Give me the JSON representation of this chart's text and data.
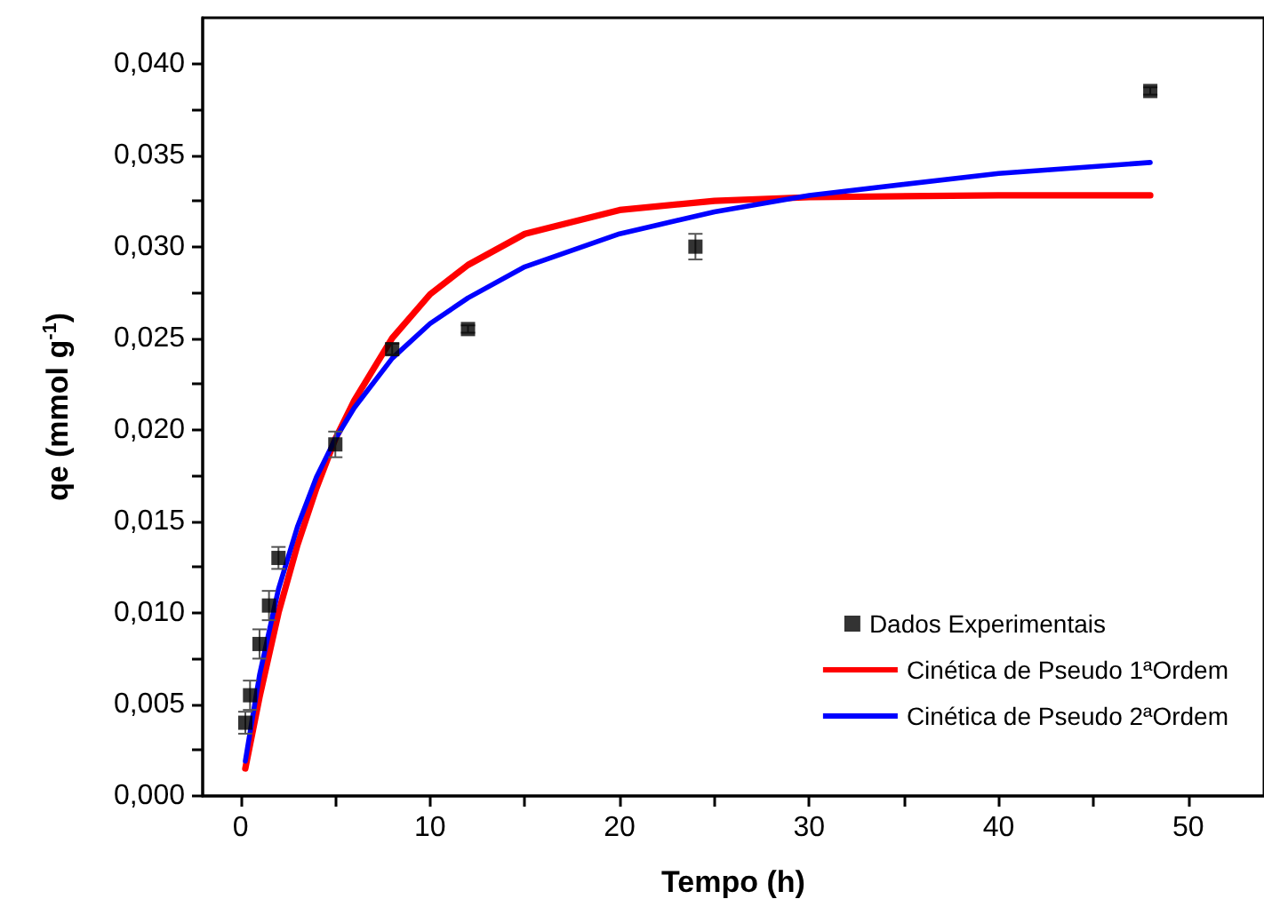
{
  "chart_data": {
    "type": "scatter",
    "xlabel": "Tempo (h)",
    "ylabel": "qe (mmol g$^{-1}$)",
    "xlim": [
      -2,
      54
    ],
    "ylim": [
      0,
      0.0425
    ],
    "xticks": [
      0,
      {
        "value": 5,
        "label": null
      },
      10,
      {
        "value": 15,
        "label": null
      },
      20,
      {
        "value": 25,
        "label": null
      },
      30,
      {
        "value": 35,
        "label": null
      },
      40,
      {
        "value": 45,
        "label": null
      },
      50
    ],
    "yticks": [
      {
        "value": 0,
        "label": "0,000"
      },
      {
        "value": 0.0025,
        "label": null
      },
      {
        "value": 0.005,
        "label": "0,005"
      },
      {
        "value": 0.0075,
        "label": null
      },
      {
        "value": 0.01,
        "label": "0,010"
      },
      {
        "value": 0.0125,
        "label": null
      },
      {
        "value": 0.015,
        "label": "0,015"
      },
      {
        "value": 0.0175,
        "label": null
      },
      {
        "value": 0.02,
        "label": "0,020"
      },
      {
        "value": 0.0225,
        "label": null
      },
      {
        "value": 0.025,
        "label": "0,025"
      },
      {
        "value": 0.0275,
        "label": null
      },
      {
        "value": 0.03,
        "label": "0,030"
      },
      {
        "value": 0.0325,
        "label": null
      },
      {
        "value": 0.035,
        "label": "0,035"
      },
      {
        "value": 0.0375,
        "label": null
      },
      {
        "value": 0.04,
        "label": "0,040"
      }
    ],
    "grid": false,
    "legend": "bottom right",
    "series": [
      {
        "name": "Dados Experimentais",
        "type": "scatter",
        "marker": "square",
        "color": "#000000",
        "x": [
          0.25,
          0.5,
          1,
          1.5,
          2,
          5,
          8,
          12,
          24,
          48
        ],
        "values": [
          0.004,
          0.0055,
          0.0083,
          0.0104,
          0.013,
          0.0192,
          0.0244,
          0.0255,
          0.03,
          0.0385
        ],
        "errors": [
          0.0006,
          0.0008,
          0.0008,
          0.0008,
          0.0006,
          0.0007,
          0.0003,
          0.0002,
          0.0007,
          0.0002
        ]
      },
      {
        "name": "Cinética de Pseudo 1ªOrdem",
        "type": "line",
        "marker": "none",
        "color": "#ff0000",
        "x": [
          0.25,
          1,
          2,
          3,
          4,
          5,
          6,
          8,
          10,
          12,
          15,
          20,
          25,
          30,
          40,
          48
        ],
        "values": [
          0.0015,
          0.0054,
          0.01,
          0.0137,
          0.0168,
          0.0195,
          0.0216,
          0.025,
          0.0274,
          0.029,
          0.0307,
          0.032,
          0.0325,
          0.0327,
          0.0328,
          0.0328
        ]
      },
      {
        "name": "Cinética de Pseudo 2ªOrdem",
        "type": "line",
        "marker": "none",
        "color": "#0000ff",
        "x": [
          0.25,
          1,
          2,
          3,
          4,
          5,
          6,
          8,
          10,
          12,
          15,
          20,
          25,
          30,
          40,
          48
        ],
        "values": [
          0.0019,
          0.0066,
          0.0113,
          0.0147,
          0.0174,
          0.0195,
          0.0212,
          0.0239,
          0.0258,
          0.0272,
          0.0289,
          0.0307,
          0.0319,
          0.0328,
          0.034,
          0.0346
        ]
      }
    ]
  }
}
